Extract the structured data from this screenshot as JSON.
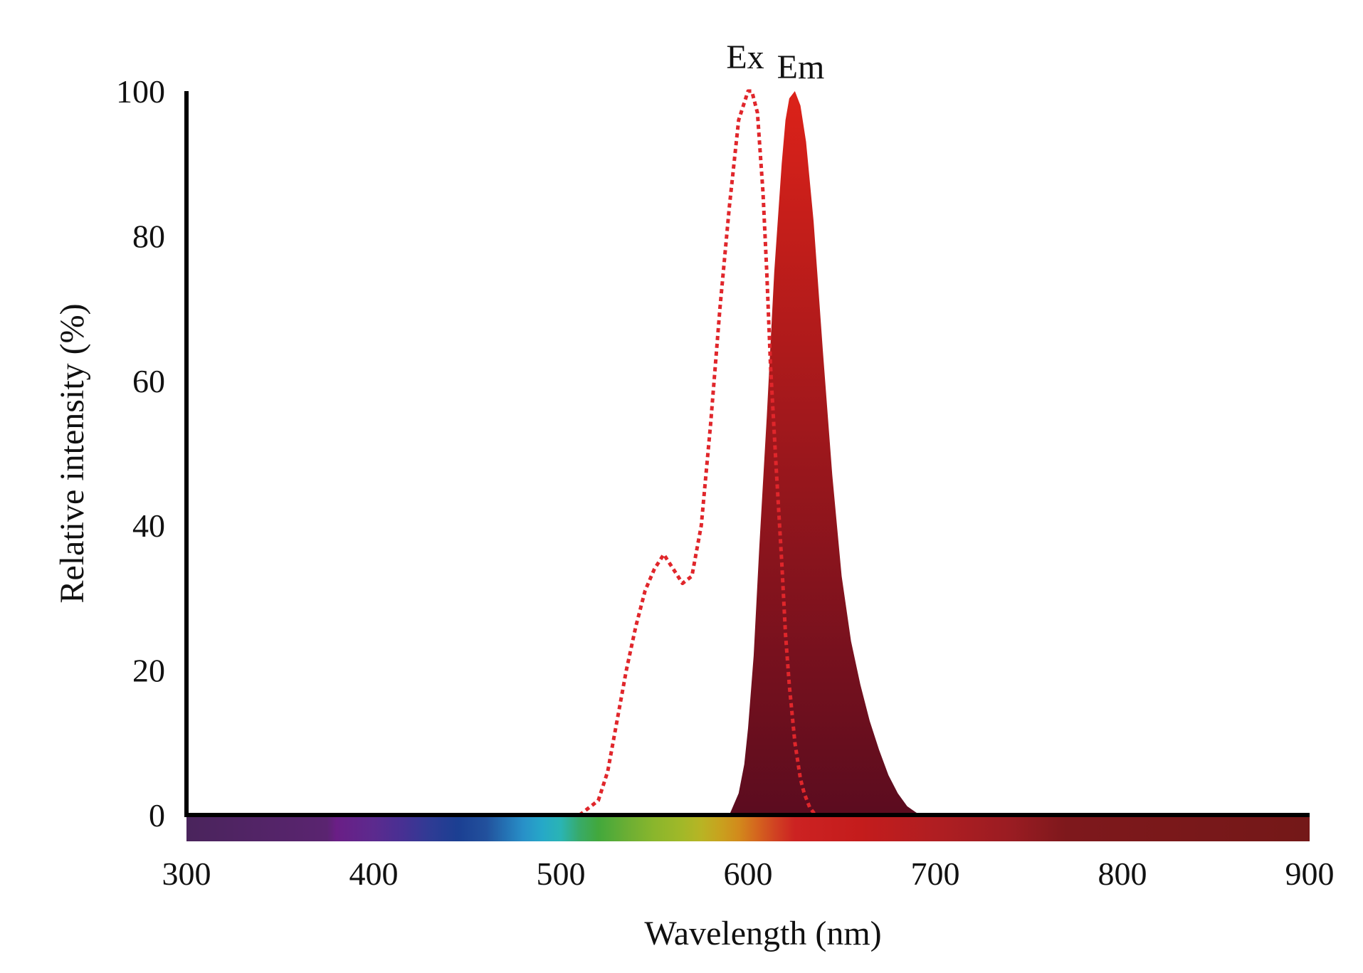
{
  "chart_data": {
    "type": "area",
    "xlabel": "Wavelength (nm)",
    "ylabel": "Relative intensity (%)",
    "xlim": [
      300,
      900
    ],
    "ylim": [
      0,
      100
    ],
    "xticks": [
      "300",
      "400",
      "500",
      "600",
      "700",
      "800",
      "900"
    ],
    "yticks": [
      "0",
      "20",
      "40",
      "60",
      "80",
      "100"
    ],
    "grid": false,
    "legend": "none",
    "series": [
      {
        "name": "Ex",
        "style": "dotted-line",
        "color": "#e0262b",
        "x": [
          510,
          520,
          525,
          530,
          535,
          540,
          545,
          550,
          555,
          560,
          565,
          570,
          575,
          580,
          585,
          590,
          595,
          600,
          602,
          605,
          608,
          610,
          612,
          615,
          618,
          620,
          622,
          625,
          628,
          630,
          633,
          636
        ],
        "y": [
          0,
          2,
          6,
          13,
          20,
          26,
          31,
          34,
          36,
          34,
          32,
          33,
          40,
          54,
          70,
          84,
          96,
          100,
          100,
          97,
          86,
          75,
          62,
          48,
          35,
          25,
          18,
          10,
          5,
          3,
          1,
          0
        ]
      },
      {
        "name": "Em",
        "style": "filled-area",
        "color_top": "#dc2219",
        "color_bottom": "#5b0c1f",
        "x": [
          590,
          595,
          598,
          600,
          603,
          606,
          610,
          614,
          618,
          620,
          622,
          625,
          628,
          631,
          635,
          640,
          645,
          650,
          655,
          660,
          665,
          670,
          675,
          680,
          685,
          690,
          695
        ],
        "y": [
          0,
          3,
          7,
          12,
          22,
          37,
          55,
          75,
          90,
          96,
          99,
          100,
          98,
          93,
          82,
          64,
          47,
          33,
          24,
          18,
          13,
          9,
          5.5,
          3,
          1.2,
          0.3,
          0
        ]
      }
    ],
    "spectrum_bar": {
      "x_range": [
        300,
        900
      ],
      "colors": [
        {
          "x": 300,
          "color": "#4a245c"
        },
        {
          "x": 375,
          "color": "#5a2470"
        },
        {
          "x": 380,
          "color": "#6a1e86"
        },
        {
          "x": 400,
          "color": "#5c2a8e"
        },
        {
          "x": 415,
          "color": "#483093"
        },
        {
          "x": 430,
          "color": "#2f3b94"
        },
        {
          "x": 445,
          "color": "#1b3f92"
        },
        {
          "x": 460,
          "color": "#22509c"
        },
        {
          "x": 470,
          "color": "#2470b2"
        },
        {
          "x": 480,
          "color": "#2890c8"
        },
        {
          "x": 490,
          "color": "#26a8c8"
        },
        {
          "x": 500,
          "color": "#2ab4b4"
        },
        {
          "x": 510,
          "color": "#38aa68"
        },
        {
          "x": 520,
          "color": "#42a83c"
        },
        {
          "x": 535,
          "color": "#6aae34"
        },
        {
          "x": 550,
          "color": "#8ab62c"
        },
        {
          "x": 565,
          "color": "#a2b828"
        },
        {
          "x": 575,
          "color": "#b8b424"
        },
        {
          "x": 585,
          "color": "#c8a21e"
        },
        {
          "x": 595,
          "color": "#d28a1c"
        },
        {
          "x": 605,
          "color": "#d4641e"
        },
        {
          "x": 615,
          "color": "#d04022"
        },
        {
          "x": 625,
          "color": "#cc2222"
        },
        {
          "x": 660,
          "color": "#c41c1c"
        },
        {
          "x": 700,
          "color": "#b01e22"
        },
        {
          "x": 740,
          "color": "#9a1c22"
        },
        {
          "x": 770,
          "color": "#7e181c"
        },
        {
          "x": 900,
          "color": "#741818"
        }
      ]
    }
  }
}
